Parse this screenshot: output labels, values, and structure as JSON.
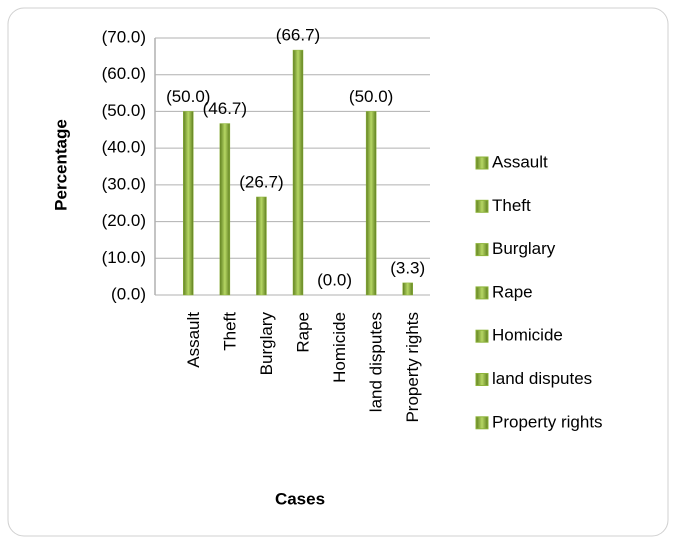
{
  "chart_data": {
    "type": "bar",
    "categories": [
      "Assault",
      "Theft",
      "Burglary",
      "Rape",
      "Homicide",
      "land  disputes",
      "Property rights"
    ],
    "values": [
      50.0,
      46.7,
      26.7,
      66.7,
      0.0,
      50.0,
      3.3
    ],
    "value_labels": [
      "(50.0)",
      "(46.7)",
      "(26.7)",
      "(66.7)",
      "(0.0)",
      "(50.0)",
      "(3.3)"
    ],
    "color": "#8db33a",
    "ylabel": "Percentage",
    "xlabel": "Cases",
    "ylim": [
      0,
      70
    ],
    "yticks": [
      {
        "value": 0,
        "label": "(0.0)"
      },
      {
        "value": 10,
        "label": "(10.0)"
      },
      {
        "value": 20,
        "label": "(20.0)"
      },
      {
        "value": 30,
        "label": "(30.0)"
      },
      {
        "value": 40,
        "label": "(40.0)"
      },
      {
        "value": 50,
        "label": "(50.0)"
      },
      {
        "value": 60,
        "label": "(60.0)"
      },
      {
        "value": 70,
        "label": "(70.0)"
      }
    ],
    "grid": true,
    "legend": "right"
  }
}
